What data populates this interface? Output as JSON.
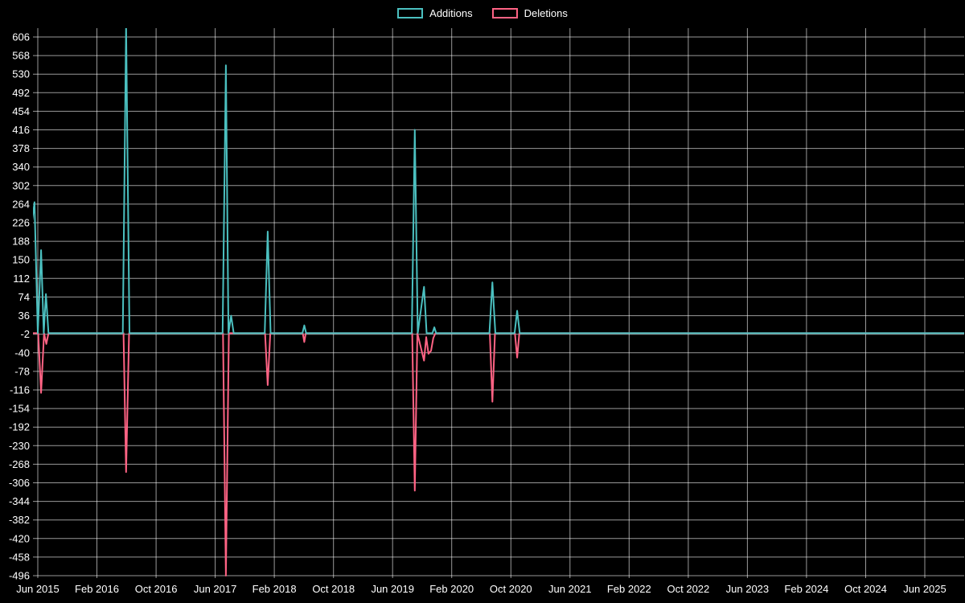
{
  "chart_data": {
    "type": "line",
    "title": "",
    "legend_position": "top",
    "background_color": "#000000",
    "text_color": "#ffffff",
    "grid": {
      "show": true,
      "color": "rgba(255,255,255,0.6)"
    },
    "x_axis": {
      "label": "",
      "unit": "months since Jun 2015",
      "tick_labels": [
        "Jun 2015",
        "Feb 2016",
        "Oct 2016",
        "Jun 2017",
        "Feb 2018",
        "Oct 2018",
        "Jun 2019",
        "Feb 2020",
        "Oct 2020",
        "Jun 2021",
        "Feb 2022",
        "Oct 2022",
        "Jun 2023",
        "Feb 2024",
        "Oct 2024",
        "Jun 2025"
      ],
      "tick_months": [
        0,
        8,
        16,
        24,
        32,
        40,
        48,
        56,
        64,
        72,
        80,
        88,
        96,
        104,
        112,
        120
      ]
    },
    "y_axis": {
      "label": "",
      "min": -496,
      "max": 606,
      "step": 38,
      "ticks": [
        606,
        568,
        530,
        492,
        454,
        416,
        378,
        340,
        302,
        264,
        226,
        188,
        150,
        112,
        74,
        36,
        -2,
        -40,
        -78,
        -116,
        -154,
        -192,
        -230,
        -268,
        -306,
        -344,
        -382,
        -420,
        -458,
        -496
      ]
    },
    "series": [
      {
        "name": "Additions",
        "color": "#4bc0c0",
        "points": [
          [
            -0.76,
            230
          ],
          [
            -0.45,
            268
          ],
          [
            0.0,
            0
          ],
          [
            0.45,
            170
          ],
          [
            0.8,
            0
          ],
          [
            1.1,
            80
          ],
          [
            1.45,
            0
          ],
          [
            11.5,
            0
          ],
          [
            11.95,
            630
          ],
          [
            12.4,
            0
          ],
          [
            25.0,
            0
          ],
          [
            25.45,
            548
          ],
          [
            25.8,
            0
          ],
          [
            26.15,
            36
          ],
          [
            26.5,
            0
          ],
          [
            30.7,
            0
          ],
          [
            31.1,
            208
          ],
          [
            31.5,
            0
          ],
          [
            35.8,
            0
          ],
          [
            36.05,
            16
          ],
          [
            36.3,
            0
          ],
          [
            50.6,
            0
          ],
          [
            51.0,
            416
          ],
          [
            51.4,
            0
          ],
          [
            52.25,
            95
          ],
          [
            52.6,
            0
          ],
          [
            53.4,
            0
          ],
          [
            53.65,
            12
          ],
          [
            53.9,
            0
          ],
          [
            61.1,
            0
          ],
          [
            61.5,
            104
          ],
          [
            61.9,
            0
          ],
          [
            64.5,
            0
          ],
          [
            64.85,
            46
          ],
          [
            65.2,
            0
          ],
          [
            125.4,
            0
          ]
        ]
      },
      {
        "name": "Deletions",
        "color": "#ff6384",
        "points": [
          [
            -0.76,
            0
          ],
          [
            0.05,
            0
          ],
          [
            0.45,
            -122
          ],
          [
            0.85,
            0
          ],
          [
            1.15,
            -22
          ],
          [
            1.45,
            0
          ],
          [
            11.6,
            0
          ],
          [
            11.95,
            -284
          ],
          [
            12.35,
            0
          ],
          [
            25.05,
            0
          ],
          [
            25.45,
            -496
          ],
          [
            25.85,
            0
          ],
          [
            30.75,
            0
          ],
          [
            31.1,
            -106
          ],
          [
            31.45,
            0
          ],
          [
            35.85,
            0
          ],
          [
            36.05,
            -18
          ],
          [
            36.25,
            0
          ],
          [
            50.65,
            0
          ],
          [
            51.0,
            -322
          ],
          [
            51.35,
            0
          ],
          [
            52.25,
            -56
          ],
          [
            52.55,
            -8
          ],
          [
            52.85,
            -42
          ],
          [
            53.2,
            -36
          ],
          [
            53.5,
            -10
          ],
          [
            53.8,
            0
          ],
          [
            61.15,
            0
          ],
          [
            61.5,
            -140
          ],
          [
            61.85,
            0
          ],
          [
            64.55,
            0
          ],
          [
            64.85,
            -50
          ],
          [
            65.15,
            0
          ],
          [
            125.4,
            0
          ]
        ]
      }
    ]
  }
}
